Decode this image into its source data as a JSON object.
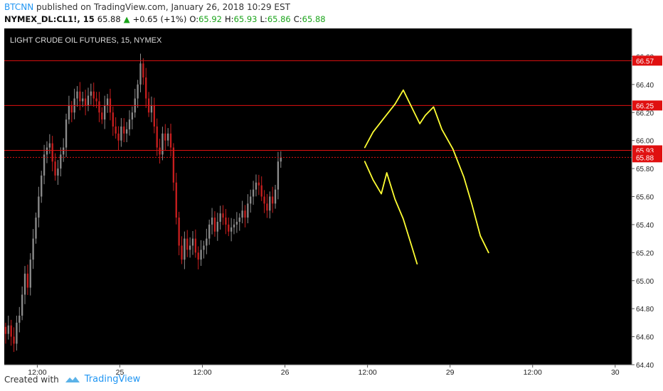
{
  "header": {
    "author": "BTCNN",
    "published": "published on TradingView.com, January 26, 2018 10:29 EST",
    "symbol": "NYMEX_DL:CL1!, 15",
    "last": "65.88",
    "change": "+0.65 (+1%)",
    "o_label": "O:",
    "o_value": "65.92",
    "h_label": "H:",
    "h_value": "65.93",
    "l_label": "L:",
    "l_value": "65.86",
    "c_label": "C:",
    "c_value": "65.88"
  },
  "footer": {
    "created_with": "Created with",
    "brand": "TradingView"
  },
  "colors": {
    "bg": "#000000",
    "up": "#8c8c8c",
    "down": "#c81e1e",
    "hline": "#e01010",
    "drawing": "#ffff33",
    "axis_text": "#222222"
  },
  "chart_data": {
    "type": "candlestick",
    "title": "LIGHT CRUDE OIL FUTURES, 15, NYMEX",
    "ylim": [
      64.4,
      66.8
    ],
    "yticks": [
      "64.40",
      "64.60",
      "64.80",
      "65.00",
      "65.20",
      "65.40",
      "65.60",
      "65.80",
      "66.00",
      "66.20",
      "66.40",
      "66.60"
    ],
    "xticks": [
      {
        "label": "12:00",
        "x": 12
      },
      {
        "label": "25",
        "x": 42
      },
      {
        "label": "12:00",
        "x": 72
      },
      {
        "label": "26",
        "x": 102
      },
      {
        "label": "12:00",
        "x": 132
      },
      {
        "label": "29",
        "x": 162
      },
      {
        "label": "12:00",
        "x": 192
      },
      {
        "label": "30",
        "x": 222
      }
    ],
    "xlim": [
      0,
      228
    ],
    "horizontal_levels": [
      {
        "value": 66.57,
        "label": "66.57"
      },
      {
        "value": 66.25,
        "label": "66.25"
      },
      {
        "value": 65.93,
        "label": "65.93"
      }
    ],
    "last_price": {
      "value": 65.88,
      "label": "65.88"
    },
    "close_series": [
      64.62,
      64.68,
      64.6,
      64.55,
      64.7,
      64.75,
      64.9,
      65.05,
      64.95,
      65.15,
      65.3,
      65.45,
      65.6,
      65.75,
      65.9,
      65.95,
      65.98,
      65.85,
      65.75,
      65.8,
      65.9,
      65.95,
      66.15,
      66.25,
      66.2,
      66.3,
      66.35,
      66.28,
      66.3,
      66.25,
      66.32,
      66.35,
      66.3,
      66.28,
      66.2,
      66.15,
      66.25,
      66.3,
      66.2,
      66.1,
      66.05,
      66.0,
      66.1,
      66.05,
      66.08,
      66.15,
      66.2,
      66.3,
      66.4,
      66.55,
      66.45,
      66.3,
      66.2,
      66.25,
      66.1,
      65.95,
      65.9,
      66.05,
      66.0,
      66.05,
      65.95,
      65.7,
      65.45,
      65.25,
      65.15,
      65.3,
      65.22,
      65.25,
      65.3,
      65.2,
      65.15,
      65.22,
      65.25,
      65.3,
      65.4,
      65.45,
      65.35,
      65.42,
      65.48,
      65.45,
      65.4,
      65.35,
      65.38,
      65.4,
      65.42,
      65.45,
      65.5,
      65.45,
      65.55,
      65.6,
      65.65,
      65.7,
      65.68,
      65.6,
      65.55,
      65.5,
      65.6,
      65.55,
      65.65,
      65.85,
      65.88
    ],
    "drawings": [
      {
        "name": "projection-up-path",
        "points": [
          [
            131,
            65.95
          ],
          [
            134,
            66.06
          ],
          [
            138,
            66.16
          ],
          [
            142,
            66.26
          ],
          [
            145,
            66.36
          ],
          [
            148,
            66.24
          ],
          [
            151,
            66.12
          ],
          [
            153,
            66.18
          ],
          [
            156,
            66.24
          ],
          [
            159,
            66.08
          ],
          [
            163,
            65.94
          ],
          [
            167,
            65.74
          ],
          [
            170,
            65.54
          ],
          [
            173,
            65.32
          ],
          [
            176,
            65.2
          ]
        ]
      },
      {
        "name": "projection-down-path",
        "points": [
          [
            131,
            65.85
          ],
          [
            134,
            65.72
          ],
          [
            137,
            65.62
          ],
          [
            139,
            65.77
          ],
          [
            142,
            65.58
          ],
          [
            145,
            65.44
          ],
          [
            148,
            65.25
          ],
          [
            150,
            65.12
          ]
        ]
      }
    ]
  }
}
